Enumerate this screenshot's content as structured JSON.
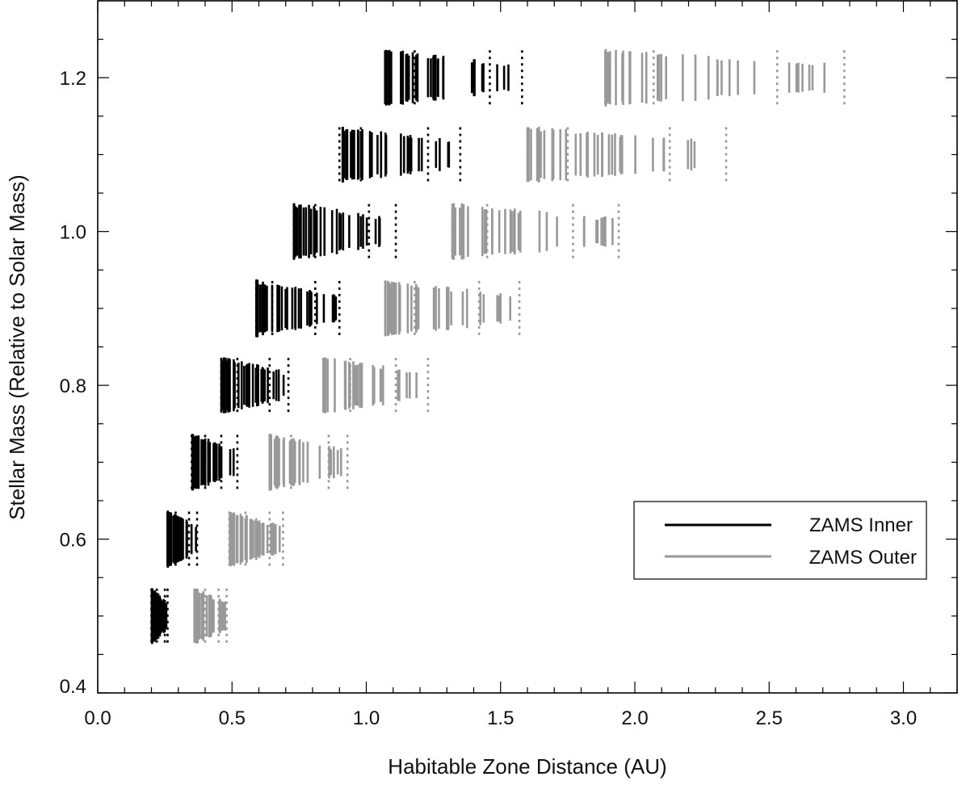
{
  "chart_data": {
    "type": "scatter",
    "xlabel": "Habitable Zone Distance (AU)",
    "ylabel": "Stellar Mass (Relative to Solar Mass)",
    "xlim": [
      0.0,
      3.2
    ],
    "ylim": [
      0.4,
      1.3
    ],
    "x_ticks": [
      "0.0",
      "0.5",
      "1.0",
      "1.5",
      "2.0",
      "2.5",
      "3.0"
    ],
    "y_ticks": [
      "0.4",
      "0.6",
      "0.8",
      "1.0",
      "1.2"
    ],
    "x_tick_values": [
      0.0,
      0.5,
      1.0,
      1.5,
      2.0,
      2.5,
      3.0
    ],
    "y_tick_values": [
      0.4,
      0.6,
      0.8,
      1.0,
      1.2
    ],
    "legend_position": "lower-right",
    "colors": {
      "inner": "#000000",
      "outer": "#999999"
    },
    "masses": [
      0.5,
      0.6,
      0.7,
      0.8,
      0.9,
      1.0,
      1.1,
      1.2
    ],
    "series": [
      {
        "name": "ZAMS Inner",
        "ranges": [
          {
            "mass": 0.5,
            "min": 0.2,
            "max": 0.26,
            "dotted": [
              0.2,
              0.22,
              0.25,
              0.26
            ]
          },
          {
            "mass": 0.6,
            "min": 0.26,
            "max": 0.37,
            "dotted": [
              0.26,
              0.29,
              0.34,
              0.37
            ]
          },
          {
            "mass": 0.7,
            "min": 0.35,
            "max": 0.52,
            "dotted": [
              0.35,
              0.4,
              0.46,
              0.52
            ]
          },
          {
            "mass": 0.8,
            "min": 0.46,
            "max": 0.71,
            "dotted": [
              0.46,
              0.52,
              0.64,
              0.71
            ]
          },
          {
            "mass": 0.9,
            "min": 0.59,
            "max": 0.9,
            "dotted": [
              0.59,
              0.65,
              0.81,
              0.9
            ]
          },
          {
            "mass": 1.0,
            "min": 0.73,
            "max": 1.11,
            "dotted": [
              0.73,
              0.81,
              1.01,
              1.11
            ]
          },
          {
            "mass": 1.1,
            "min": 0.9,
            "max": 1.35,
            "dotted": [
              0.9,
              0.98,
              1.23,
              1.35
            ]
          },
          {
            "mass": 1.2,
            "min": 1.07,
            "max": 1.58,
            "dotted": [
              1.07,
              1.18,
              1.46,
              1.58
            ]
          }
        ]
      },
      {
        "name": "ZAMS Outer",
        "ranges": [
          {
            "mass": 0.5,
            "min": 0.36,
            "max": 0.48,
            "dotted": [
              0.36,
              0.4,
              0.45,
              0.48
            ]
          },
          {
            "mass": 0.6,
            "min": 0.49,
            "max": 0.69,
            "dotted": [
              0.49,
              0.55,
              0.64,
              0.69
            ]
          },
          {
            "mass": 0.7,
            "min": 0.64,
            "max": 0.93,
            "dotted": [
              0.64,
              0.72,
              0.86,
              0.93
            ]
          },
          {
            "mass": 0.8,
            "min": 0.84,
            "max": 1.23,
            "dotted": [
              0.84,
              0.94,
              1.11,
              1.23
            ]
          },
          {
            "mass": 0.9,
            "min": 1.07,
            "max": 1.57,
            "dotted": [
              1.07,
              1.18,
              1.42,
              1.57
            ]
          },
          {
            "mass": 1.0,
            "min": 1.32,
            "max": 1.94,
            "dotted": [
              1.32,
              1.45,
              1.77,
              1.94
            ]
          },
          {
            "mass": 1.1,
            "min": 1.6,
            "max": 2.34,
            "dotted": [
              1.6,
              1.75,
              2.13,
              2.34
            ]
          },
          {
            "mass": 1.2,
            "min": 1.89,
            "max": 2.78,
            "dotted": [
              1.89,
              2.07,
              2.53,
              2.78
            ]
          }
        ]
      }
    ]
  }
}
